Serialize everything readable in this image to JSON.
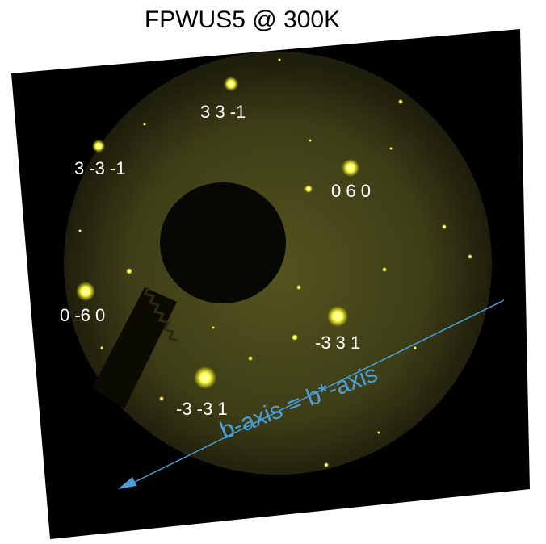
{
  "title": "FPWUS5 @ 300K",
  "reflections": [
    {
      "label": "3 3 -1"
    },
    {
      "label": "3 -3 -1"
    },
    {
      "label": "0 6 0"
    },
    {
      "label": "0 -6 0"
    },
    {
      "label": "-3 3 1"
    },
    {
      "label": "-3 -3 1"
    }
  ],
  "axis_annotation": "b-axis = b*-axis",
  "colors": {
    "spot": "#ffff66",
    "screen_glow": "#4a4a1a",
    "background": "#000000",
    "axis": "#4a9fd8",
    "label_text": "#ffffff"
  }
}
